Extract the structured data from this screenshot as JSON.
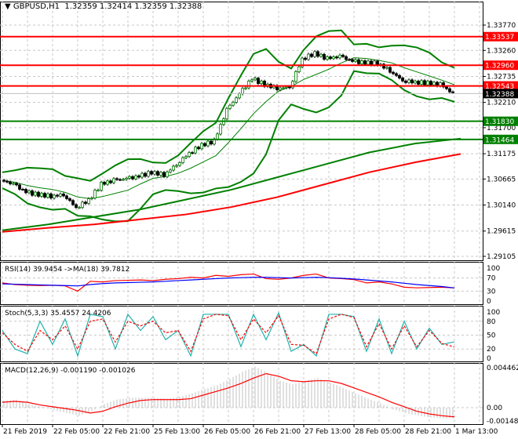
{
  "header": {
    "symbol": "GBPUSD,H1",
    "ohlc": "1.32359 1.32414 1.32359 1.32388"
  },
  "colors": {
    "up": "#008000",
    "down": "#000000",
    "resistance": "#ff0000",
    "support": "#008000",
    "bollinger": "#008000",
    "ma_slow": "#ff0000",
    "ma_long": "#008000",
    "rsi": "#ff0000",
    "rsi_ma": "#0000ff",
    "stoch_main": "#20b2aa",
    "stoch_signal": "#ff0000",
    "macd_hist": "#c0c0c0",
    "macd_signal": "#ff0000"
  },
  "chart_data": [
    {
      "type": "candlestick",
      "title": "GBPUSD,H1",
      "ylim": [
        1.29105,
        1.3377
      ],
      "y_ticks": [
        "1.33770",
        "1.33260",
        "1.32735",
        "1.32210",
        "1.31700",
        "1.31175",
        "1.30665",
        "1.30140",
        "1.29615",
        "1.29105"
      ],
      "x_tick_labels": [
        "21 Feb 2019",
        "22 Feb 05:00",
        "22 Feb 21:00",
        "25 Feb 13:00",
        "26 Feb 05:00",
        "26 Feb 21:00",
        "27 Feb 13:00",
        "28 Feb 05:00",
        "28 Feb 21:00",
        "1 Mar 13:00"
      ],
      "closes": [
        1.3064,
        1.3056,
        1.304,
        1.3035,
        1.3032,
        1.3035,
        1.3009,
        1.3024,
        1.3056,
        1.3064,
        1.3067,
        1.3072,
        1.308,
        1.3075,
        1.3096,
        1.3119,
        1.3135,
        1.3143,
        1.3206,
        1.3238,
        1.3269,
        1.3257,
        1.325,
        1.3252,
        1.3309,
        1.332,
        1.3309,
        1.3314,
        1.3304,
        1.3301,
        1.33,
        1.3285,
        1.3265,
        1.3262,
        1.326,
        1.3257,
        1.3239
      ],
      "ma_long": [
        1.2963,
        1.2975,
        1.299,
        1.3005,
        1.3025,
        1.3045,
        1.307,
        1.3095,
        1.312,
        1.3138,
        1.3148
      ],
      "ma_slow": [
        1.296,
        1.2968,
        1.2975,
        1.2985,
        1.2995,
        1.301,
        1.303,
        1.3055,
        1.308,
        1.31,
        1.3117
      ],
      "levels": [
        {
          "price": "1.33537",
          "kind": "resistance"
        },
        {
          "price": "1.32960",
          "kind": "resistance"
        },
        {
          "price": "1.32543",
          "kind": "resistance"
        },
        {
          "price": "1.31830",
          "kind": "support"
        },
        {
          "price": "1.31464",
          "kind": "support"
        }
      ],
      "current_price": "1.32388"
    },
    {
      "type": "line",
      "title": "RSI(14) 39.9454  ->MA(18) 39.7812",
      "ylim": [
        0,
        100
      ],
      "y_ticks": [
        "100",
        "70",
        "30",
        "0"
      ],
      "series": [
        {
          "values": [
            55,
            50,
            48,
            47,
            48,
            46,
            30,
            60,
            58,
            62,
            63,
            64,
            62,
            66,
            68,
            72,
            70,
            78,
            75,
            80,
            82,
            68,
            66,
            70,
            78,
            82,
            70,
            68,
            65,
            55,
            58,
            52,
            42,
            40,
            41,
            42,
            39.9454
          ]
        },
        {
          "values": [
            52,
            51,
            50,
            49,
            48,
            47,
            46,
            50,
            53,
            55,
            56,
            57,
            58,
            60,
            62,
            64,
            66,
            68,
            70,
            71,
            72,
            72,
            71,
            70,
            71,
            72,
            71,
            69,
            67,
            64,
            61,
            58,
            54,
            50,
            47,
            44,
            39.7812
          ]
        }
      ]
    },
    {
      "type": "line",
      "title": "Stoch(5,3,3) 35.4557 24.4206",
      "ylim": [
        0,
        100
      ],
      "y_ticks": [
        "100",
        "80",
        "50",
        "20",
        "0"
      ],
      "series": [
        {
          "values": [
            60,
            20,
            10,
            80,
            30,
            85,
            5,
            95,
            90,
            20,
            95,
            60,
            90,
            40,
            60,
            5,
            95,
            95,
            95,
            25,
            95,
            40,
            98,
            15,
            30,
            5,
            95,
            95,
            90,
            15,
            85,
            10,
            80,
            20,
            65,
            30,
            35.4557
          ]
        },
        {
          "values": [
            55,
            30,
            15,
            60,
            40,
            70,
            20,
            80,
            85,
            35,
            80,
            70,
            80,
            55,
            60,
            15,
            85,
            95,
            92,
            40,
            85,
            55,
            92,
            30,
            28,
            10,
            85,
            95,
            88,
            25,
            75,
            20,
            70,
            25,
            60,
            32,
            24.4206
          ]
        }
      ]
    },
    {
      "type": "bar",
      "title": "MACD(12,26,9) -0.001190 -0.001026",
      "ylim": [
        -0.001482,
        0.004462
      ],
      "y_ticks": [
        "0.004462",
        "0.00",
        "-0.001482"
      ],
      "series": [
        {
          "name": "",
          "values": [
            0.0008,
            0.0009,
            0.0004,
            0.0001,
            -0.0003,
            -0.0006,
            -0.0009,
            -0.0004,
            0.0004,
            0.0009,
            0.0011,
            0.0011,
            0.0011,
            0.001,
            0.0012,
            0.0016,
            0.0021,
            0.0025,
            0.0032,
            0.004,
            0.0046,
            0.0039,
            0.003,
            0.0026,
            0.003,
            0.0033,
            0.0028,
            0.0022,
            0.0016,
            0.001,
            0.0005,
            -0.0002,
            -0.0006,
            -0.0009,
            -0.0011,
            -0.0012,
            -0.00119
          ]
        },
        {
          "name": "",
          "values": [
            0.0006,
            0.0007,
            0.0006,
            0.0003,
            0.0001,
            -0.0001,
            -0.0003,
            -0.0006,
            -0.0004,
            0.0001,
            0.0005,
            0.0008,
            0.0009,
            0.0009,
            0.0009,
            0.001,
            0.0014,
            0.0018,
            0.0022,
            0.0027,
            0.0033,
            0.0038,
            0.0035,
            0.003,
            0.0029,
            0.003,
            0.003,
            0.0027,
            0.0022,
            0.0017,
            0.0012,
            0.0006,
            0.0001,
            -0.0004,
            -0.0007,
            -0.0009,
            -0.001026
          ]
        }
      ]
    }
  ]
}
